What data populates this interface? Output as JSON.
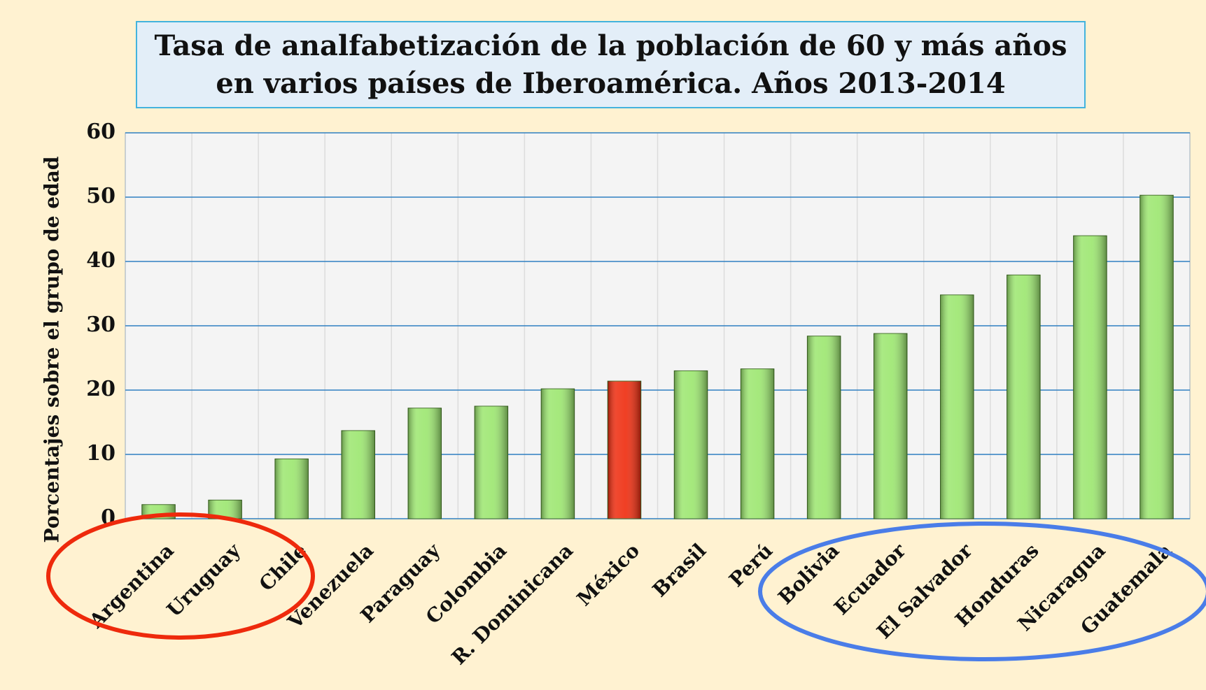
{
  "chart_data": {
    "type": "bar",
    "title": "Tasa de analfabetización de la población de 60 y más años en varios países de Iberoamérica. Años 2013-2014",
    "y_label": "Porcentajes sobre el grupo de edad",
    "categories": [
      "Argentina",
      "Uruguay",
      "Chile",
      "Venezuela",
      "Paraguay",
      "Colombia",
      "R. Dominicana",
      "México",
      "Brasil",
      "Perú",
      "Bolivia",
      "Ecuador",
      "El Salvador",
      "Honduras",
      "Nicaragua",
      "Guatemala"
    ],
    "values": [
      2.2,
      2.9,
      9.3,
      13.7,
      17.2,
      17.5,
      20.2,
      21.4,
      23.0,
      23.3,
      28.4,
      28.8,
      34.8,
      37.9,
      44.0,
      50.3
    ],
    "colors": [
      "#9be66e",
      "#9be66e",
      "#9be66e",
      "#9be66e",
      "#9be66e",
      "#9be66e",
      "#9be66e",
      "#ee2a0c",
      "#9be66e",
      "#9be66e",
      "#9be66e",
      "#9be66e",
      "#9be66e",
      "#9be66e",
      "#9be66e",
      "#9be66e"
    ],
    "ylim": [
      0,
      60
    ],
    "yticks": [
      0,
      10,
      20,
      30,
      40,
      50,
      60
    ],
    "grid": true
  }
}
